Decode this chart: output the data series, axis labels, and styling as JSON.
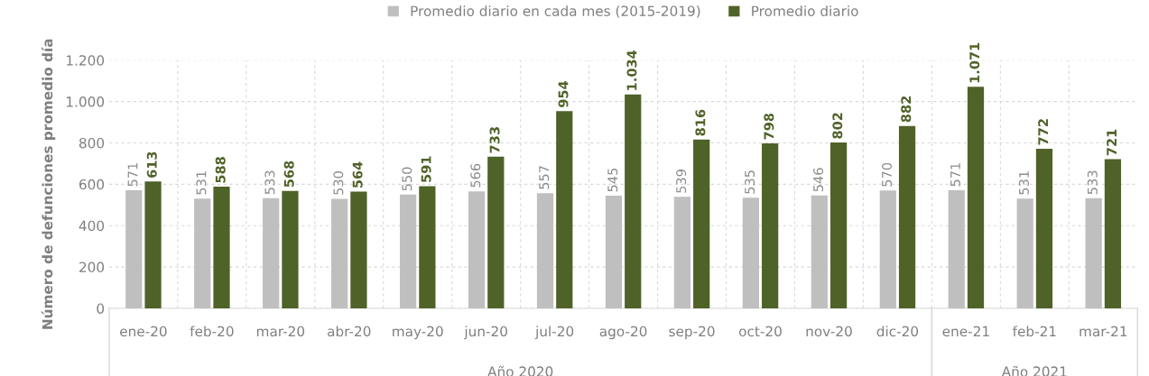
{
  "chart_data": {
    "type": "bar",
    "ylabel": "Número de defunciones promedio día",
    "categories": [
      "ene-20",
      "feb-20",
      "mar-20",
      "abr-20",
      "may-20",
      "jun-20",
      "jul-20",
      "ago-20",
      "sep-20",
      "oct-20",
      "nov-20",
      "dic-20",
      "ene-21",
      "feb-21",
      "mar-21"
    ],
    "series": [
      {
        "name": "Promedio diario en cada mes (2015-2019)",
        "color": "#bfbfbf",
        "values": [
          571,
          531,
          533,
          530,
          550,
          566,
          557,
          545,
          539,
          535,
          546,
          570,
          571,
          531,
          533
        ],
        "value_labels": [
          "571",
          "531",
          "533",
          "530",
          "550",
          "566",
          "557",
          "545",
          "539",
          "535",
          "546",
          "570",
          "571",
          "531",
          "533"
        ]
      },
      {
        "name": "Promedio diario",
        "color": "#4f6228",
        "values": [
          613,
          588,
          568,
          564,
          591,
          733,
          954,
          1034,
          816,
          798,
          802,
          882,
          1071,
          772,
          721
        ],
        "value_labels": [
          "613",
          "588",
          "568",
          "564",
          "591",
          "733",
          "954",
          "1.034",
          "816",
          "798",
          "802",
          "882",
          "1.071",
          "772",
          "721"
        ]
      }
    ],
    "ylim": [
      0,
      1200
    ],
    "yticks": [
      0,
      200,
      400,
      600,
      800,
      {
        "value": 1000,
        "label": "1.000"
      },
      {
        "value": 1200,
        "label": "1.200"
      }
    ],
    "grid": true,
    "legend": "top",
    "annotations": [
      "Año 2020",
      "Año 2021"
    ]
  }
}
